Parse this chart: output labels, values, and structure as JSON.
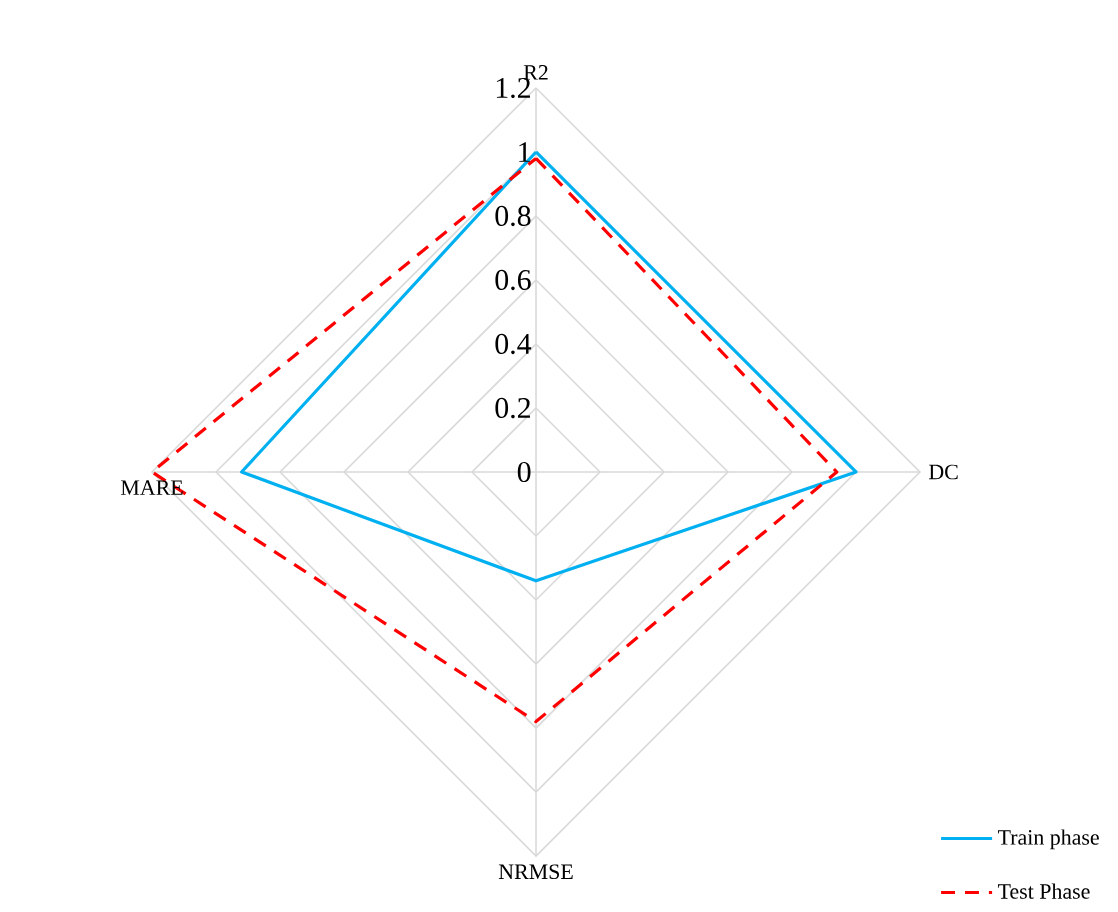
{
  "chart_data": {
    "type": "radar",
    "categories": [
      "R2",
      "DC",
      "NRMSE",
      "MARE"
    ],
    "ylim": [
      0,
      1.2
    ],
    "yticks": [
      0,
      0.2,
      0.4,
      0.6,
      0.8,
      1,
      1.2
    ],
    "grid": true,
    "legend": "bottom right",
    "marker": "none",
    "series": [
      {
        "name": "Train phase",
        "color": "#00b0f0",
        "line_style": "solid",
        "values": [
          1.0,
          1.0,
          0.34,
          0.92
        ]
      },
      {
        "name": "Test Phase",
        "color": "#ff0000",
        "line_style": "dashed",
        "values": [
          0.98,
          0.94,
          0.78,
          1.2
        ]
      }
    ]
  }
}
